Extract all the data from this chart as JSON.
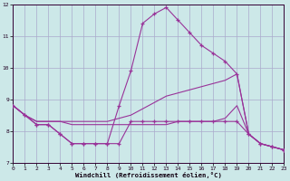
{
  "xlabel": "Windchill (Refroidissement éolien,°C)",
  "bg_color": "#cce8e8",
  "grid_color": "#aaaacc",
  "line_color": "#993399",
  "xlim": [
    0,
    23
  ],
  "ylim": [
    7,
    12
  ],
  "yticks": [
    7,
    8,
    9,
    10,
    11,
    12
  ],
  "xticks": [
    0,
    1,
    2,
    3,
    4,
    5,
    6,
    7,
    8,
    9,
    10,
    11,
    12,
    13,
    14,
    15,
    16,
    17,
    18,
    19,
    20,
    21,
    22,
    23
  ],
  "line1_x": [
    0,
    1,
    2,
    3,
    4,
    5,
    6,
    7,
    8,
    9,
    10,
    11,
    12,
    13,
    14,
    15,
    16,
    17,
    18,
    19,
    20,
    21,
    22,
    23
  ],
  "line1_y": [
    8.8,
    8.5,
    8.2,
    8.2,
    7.9,
    7.6,
    7.6,
    7.6,
    7.6,
    7.6,
    8.3,
    8.3,
    8.3,
    8.3,
    8.3,
    8.3,
    8.3,
    8.3,
    8.3,
    8.3,
    7.9,
    7.6,
    7.5,
    7.4
  ],
  "line2_x": [
    0,
    1,
    2,
    3,
    4,
    5,
    6,
    7,
    8,
    9,
    10,
    11,
    12,
    13,
    14,
    15,
    16,
    17,
    18,
    19,
    20,
    21,
    22,
    23
  ],
  "line2_y": [
    8.8,
    8.5,
    8.2,
    8.2,
    7.9,
    7.6,
    7.6,
    7.6,
    7.6,
    8.8,
    9.9,
    11.4,
    11.7,
    11.9,
    11.5,
    11.1,
    10.7,
    10.45,
    10.2,
    9.8,
    7.9,
    7.6,
    7.5,
    7.4
  ],
  "line3_x": [
    0,
    1,
    2,
    3,
    4,
    5,
    6,
    7,
    8,
    9,
    10,
    11,
    12,
    13,
    14,
    15,
    16,
    17,
    18,
    19,
    20,
    21,
    22,
    23
  ],
  "line3_y": [
    8.8,
    8.5,
    8.3,
    8.3,
    8.3,
    8.3,
    8.3,
    8.3,
    8.3,
    8.4,
    8.5,
    8.7,
    8.9,
    9.1,
    9.2,
    9.3,
    9.4,
    9.5,
    9.6,
    9.8,
    7.9,
    7.6,
    7.5,
    7.4
  ],
  "line4_x": [
    0,
    1,
    2,
    3,
    4,
    5,
    6,
    7,
    8,
    9,
    10,
    11,
    12,
    13,
    14,
    15,
    16,
    17,
    18,
    19,
    20,
    21,
    22,
    23
  ],
  "line4_y": [
    8.8,
    8.5,
    8.3,
    8.3,
    8.3,
    8.2,
    8.2,
    8.2,
    8.2,
    8.2,
    8.2,
    8.2,
    8.2,
    8.2,
    8.3,
    8.3,
    8.3,
    8.3,
    8.4,
    8.8,
    7.9,
    7.6,
    7.5,
    7.4
  ]
}
